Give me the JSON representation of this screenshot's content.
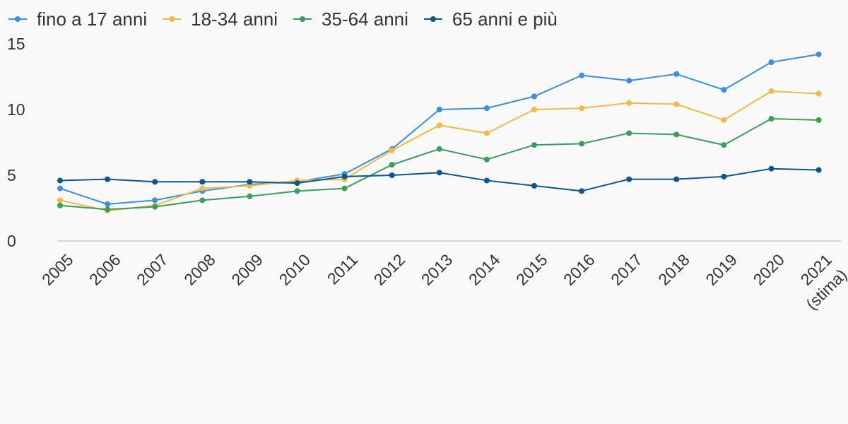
{
  "chart_data": {
    "type": "line",
    "title": "",
    "xlabel": "",
    "ylabel": "",
    "x": [
      "2005",
      "2006",
      "2007",
      "2008",
      "2009",
      "2010",
      "2011",
      "2012",
      "2013",
      "2014",
      "2015",
      "2016",
      "2017",
      "2018",
      "2019",
      "2020",
      "2021"
    ],
    "x_tick_labels": [
      [
        "2005"
      ],
      [
        "2006"
      ],
      [
        "2007"
      ],
      [
        "2008"
      ],
      [
        "2009"
      ],
      [
        "2010"
      ],
      [
        "2011"
      ],
      [
        "2012"
      ],
      [
        "2013"
      ],
      [
        "2014"
      ],
      [
        "2015"
      ],
      [
        "2016"
      ],
      [
        "2017"
      ],
      [
        "2018"
      ],
      [
        "2019"
      ],
      [
        "2020"
      ],
      [
        "2021",
        "(stima)"
      ]
    ],
    "y_ticks": [
      "0",
      "5",
      "10",
      "15"
    ],
    "ylim": [
      0,
      15
    ],
    "grid": false,
    "legend_position": "top-left",
    "series": [
      {
        "name": "fino a 17 anni",
        "color": "#3b8fe0",
        "values": [
          4.0,
          2.8,
          3.1,
          3.8,
          4.3,
          4.5,
          5.1,
          7.0,
          10.0,
          10.1,
          11.0,
          12.6,
          12.2,
          12.7,
          11.5,
          13.6,
          14.2
        ]
      },
      {
        "name": "18-34 anni",
        "color": "#f5b942",
        "values": [
          3.1,
          2.3,
          2.7,
          4.0,
          4.2,
          4.6,
          4.7,
          6.9,
          8.8,
          8.2,
          10.0,
          10.1,
          10.5,
          10.4,
          9.2,
          11.4,
          11.2
        ]
      },
      {
        "name": "35-64 anni",
        "color": "#3a9f5a",
        "values": [
          2.7,
          2.4,
          2.6,
          3.1,
          3.4,
          3.8,
          4.0,
          5.8,
          7.0,
          6.2,
          7.3,
          7.4,
          8.2,
          8.1,
          7.3,
          9.3,
          9.2
        ]
      },
      {
        "name": "65 anni e più",
        "color": "#0a5593",
        "values": [
          4.6,
          4.7,
          4.5,
          4.5,
          4.5,
          4.4,
          4.9,
          5.0,
          5.2,
          4.6,
          4.2,
          3.8,
          4.7,
          4.7,
          4.9,
          5.5,
          5.4
        ]
      }
    ]
  }
}
